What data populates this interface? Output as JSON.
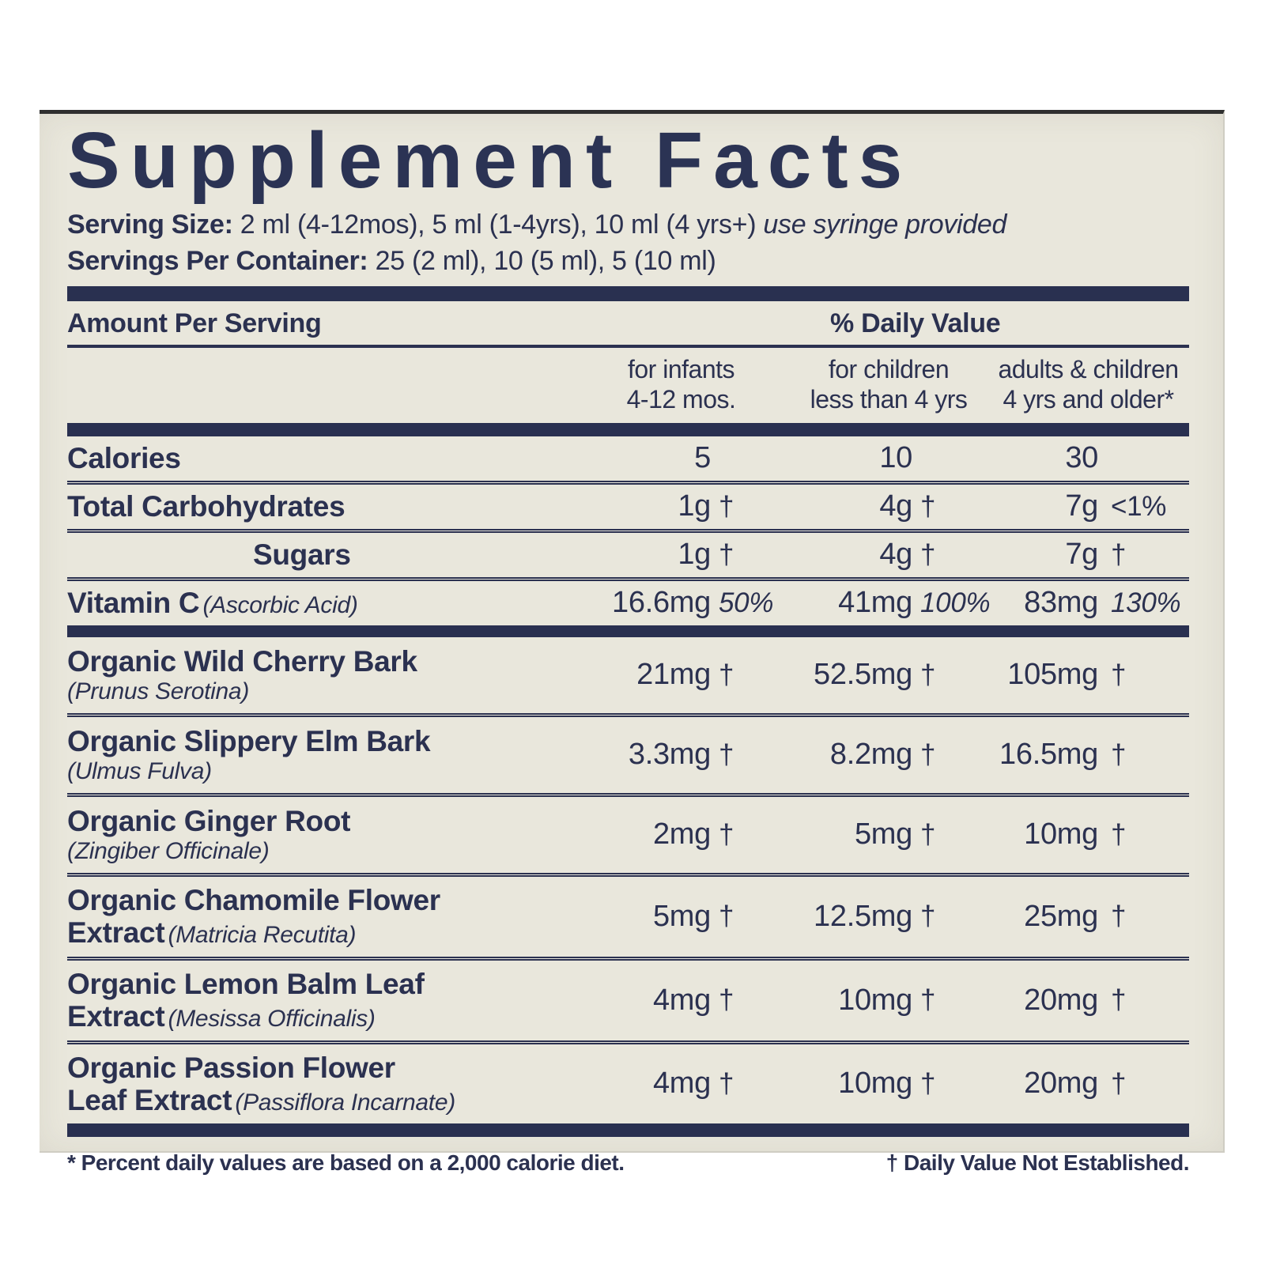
{
  "label": {
    "title": "Supplement Facts",
    "serving_size_label": "Serving Size:",
    "serving_size_value": "2 ml (4-12mos), 5 ml (1-4yrs), 10 ml (4 yrs+)",
    "serving_size_note": "use syringe provided",
    "servings_label": "Servings Per Container:",
    "servings_value": "25 (2 ml), 10 (5 ml), 5 (10 ml)",
    "amount_header": "Amount Per Serving",
    "dv_header": "% Daily Value",
    "colors": {
      "ink": "#2b3150",
      "bar": "#293050",
      "paper": "#e9e7dc"
    },
    "column_groups": [
      {
        "line1": "for infants",
        "line2": "4-12 mos."
      },
      {
        "line1": "for children",
        "line2": "less than 4 yrs"
      },
      {
        "line1": "adults & children",
        "line2": "4 yrs and older*"
      }
    ],
    "footnote_left": "* Percent daily values are based on a 2,000 calorie diet.",
    "footnote_right": "† Daily Value Not Established."
  },
  "rows": [
    {
      "name": "Calories",
      "values": [
        {
          "a": "5",
          "s": ""
        },
        {
          "a": "10",
          "s": ""
        },
        {
          "a": "30",
          "s": ""
        }
      ],
      "sep": "line"
    },
    {
      "name": "Total Carbohydrates",
      "values": [
        {
          "a": "1g",
          "s": "†"
        },
        {
          "a": "4g",
          "s": "†"
        },
        {
          "a": "7g",
          "s": "<1%"
        }
      ],
      "sep": "line"
    },
    {
      "name": "Sugars",
      "indent": true,
      "values": [
        {
          "a": "1g",
          "s": "†"
        },
        {
          "a": "4g",
          "s": "†"
        },
        {
          "a": "7g",
          "s": "†"
        }
      ],
      "sep": "line"
    },
    {
      "name": "Vitamin C",
      "latin": "(Ascorbic Acid)",
      "latin_inline": true,
      "italic_sym": true,
      "values": [
        {
          "a": "16.6mg",
          "s": "50%"
        },
        {
          "a": "41mg",
          "s": "100%"
        },
        {
          "a": "83mg",
          "s": "130%"
        }
      ],
      "sep": "bar-md"
    },
    {
      "name": "Organic Wild Cherry Bark",
      "latin": "(Prunus Serotina)",
      "tall": true,
      "values": [
        {
          "a": "21mg",
          "s": "†"
        },
        {
          "a": "52.5mg",
          "s": "†"
        },
        {
          "a": "105mg",
          "s": "†"
        }
      ],
      "sep": "line"
    },
    {
      "name": "Organic Slippery Elm Bark",
      "latin": "(Ulmus Fulva)",
      "tall": true,
      "values": [
        {
          "a": "3.3mg",
          "s": "†"
        },
        {
          "a": "8.2mg",
          "s": "†"
        },
        {
          "a": "16.5mg",
          "s": "†"
        }
      ],
      "sep": "line"
    },
    {
      "name": "Organic Ginger Root",
      "latin": "(Zingiber Officinale)",
      "tall": true,
      "values": [
        {
          "a": "2mg",
          "s": "†"
        },
        {
          "a": "5mg",
          "s": "†"
        },
        {
          "a": "10mg",
          "s": "†"
        }
      ],
      "sep": "line"
    },
    {
      "name": "Organic Chamomile Flower",
      "name2": "Extract",
      "latin": "(Matricia Recutita)",
      "tall": true,
      "values": [
        {
          "a": "5mg",
          "s": "†"
        },
        {
          "a": "12.5mg",
          "s": "†"
        },
        {
          "a": "25mg",
          "s": "†"
        }
      ],
      "sep": "line"
    },
    {
      "name": "Organic Lemon Balm Leaf",
      "name2": "Extract",
      "latin": "(Mesissa Officinalis)",
      "tall": true,
      "values": [
        {
          "a": "4mg",
          "s": "†"
        },
        {
          "a": "10mg",
          "s": "†"
        },
        {
          "a": "20mg",
          "s": "†"
        }
      ],
      "sep": "line"
    },
    {
      "name": "Organic Passion Flower",
      "name2": "Leaf Extract",
      "latin": "(Passiflora Incarnate)",
      "tall": true,
      "values": [
        {
          "a": "4mg",
          "s": "†"
        },
        {
          "a": "10mg",
          "s": "†"
        },
        {
          "a": "20mg",
          "s": "†"
        }
      ],
      "sep": "bar-lg"
    }
  ]
}
